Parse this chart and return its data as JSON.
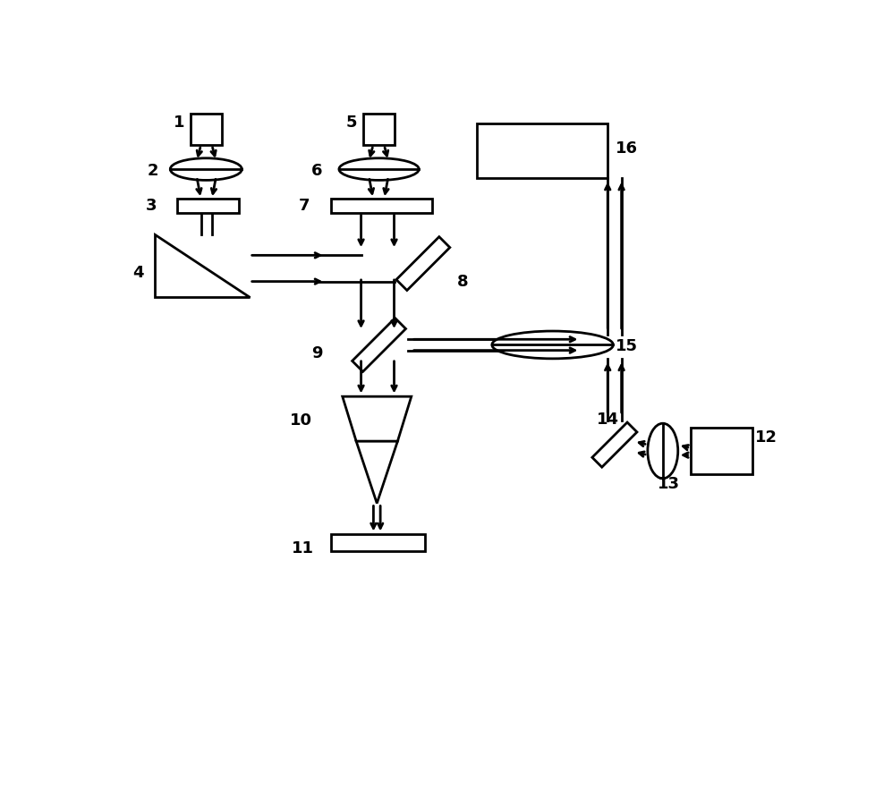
{
  "figsize": [
    9.79,
    9.02
  ],
  "dpi": 100,
  "lw": 2.0,
  "fs": 13
}
